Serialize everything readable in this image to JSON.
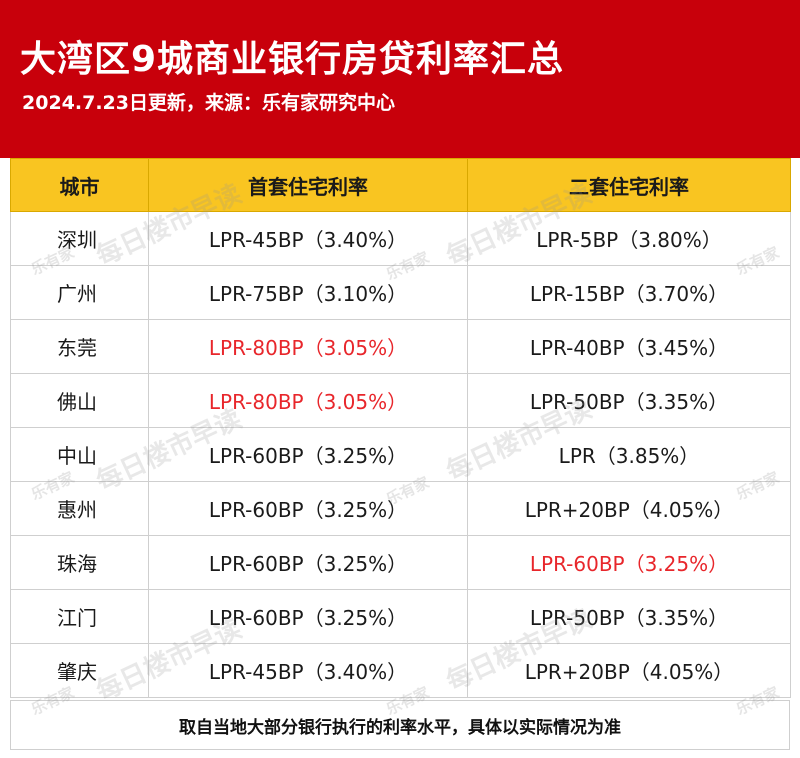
{
  "header": {
    "title": "大湾区9城商业银行房贷利率汇总",
    "subtitle": "2024.7.23日更新，来源：乐有家研究中心"
  },
  "table": {
    "columns": [
      "城市",
      "首套住宅利率",
      "二套住宅利率"
    ],
    "rows": [
      {
        "city": "深圳",
        "first": "LPR-45BP（3.40%）",
        "second": "LPR-5BP（3.80%）"
      },
      {
        "city": "广州",
        "first": "LPR-75BP（3.10%）",
        "second": "LPR-15BP（3.70%）"
      },
      {
        "city": "东莞",
        "first": "LPR-80BP（3.05%）",
        "second": "LPR-40BP（3.45%）"
      },
      {
        "city": "佛山",
        "first": "LPR-80BP（3.05%）",
        "second": "LPR-50BP（3.35%）"
      },
      {
        "city": "中山",
        "first": "LPR-60BP（3.25%）",
        "second": "LPR（3.85%）"
      },
      {
        "city": "惠州",
        "first": "LPR-60BP（3.25%）",
        "second": "LPR+20BP（4.05%）"
      },
      {
        "city": "珠海",
        "first": "LPR-60BP（3.25%）",
        "second": "LPR-60BP（3.25%）"
      },
      {
        "city": "江门",
        "first": "LPR-60BP（3.25%）",
        "second": "LPR-50BP（3.35%）"
      },
      {
        "city": "肇庆",
        "first": "LPR-45BP（3.40%）",
        "second": "LPR+20BP（4.05%）"
      }
    ]
  },
  "footer": {
    "note": "取自当地大部分银行执行的利率水平，具体以实际情况为准"
  },
  "watermark": {
    "text": "每日楼市早读",
    "logo": "乐有家"
  },
  "colors": {
    "header_bg": "#c8000b",
    "table_header_bg": "#f9c521",
    "highlight_red": "#e8262b"
  }
}
